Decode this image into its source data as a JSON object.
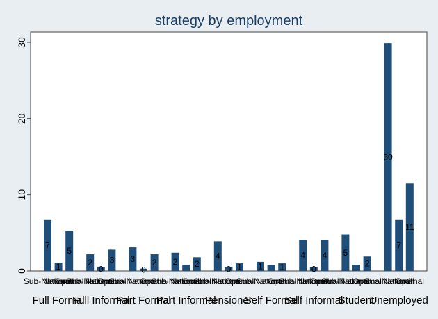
{
  "chart_data": {
    "type": "bar",
    "title": "strategy by employment",
    "xlabel": "",
    "ylabel": "",
    "ylim": [
      0,
      31.5
    ],
    "yticks": [
      0,
      10,
      20,
      30
    ],
    "grid": false,
    "legend": "none",
    "bar_color": "#1f4e79",
    "groups": [
      {
        "name": "Full Formal",
        "bars": [
          {
            "label": "Sub-National",
            "value": 6.7,
            "data_label": "7"
          },
          {
            "label": "National",
            "value": 1.1,
            "data_label": "1"
          },
          {
            "label": "Optimal",
            "value": 5.3,
            "data_label": "5"
          }
        ]
      },
      {
        "name": "Full Informal",
        "bars": [
          {
            "label": "Sub-National",
            "value": 2.2,
            "data_label": "2"
          },
          {
            "label": "National",
            "value": 0.5,
            "data_label": "0"
          },
          {
            "label": "Optimal",
            "value": 2.8,
            "data_label": "3"
          }
        ]
      },
      {
        "name": "Part Formal",
        "bars": [
          {
            "label": "Sub-National",
            "value": 3.1,
            "data_label": "3"
          },
          {
            "label": "National",
            "value": 0.3,
            "data_label": "0"
          },
          {
            "label": "Optimal",
            "value": 2.2,
            "data_label": "2"
          }
        ]
      },
      {
        "name": "Part Informal",
        "bars": [
          {
            "label": "Sub-National",
            "value": 2.4,
            "data_label": "2"
          },
          {
            "label": "National",
            "value": 0.8,
            "data_label": ""
          },
          {
            "label": "Optimal",
            "value": 1.8,
            "data_label": "2"
          }
        ]
      },
      {
        "name": "Pensioner",
        "bars": [
          {
            "label": "Sub-National",
            "value": 3.9,
            "data_label": "4"
          },
          {
            "label": "National",
            "value": 0.5,
            "data_label": "0"
          },
          {
            "label": "Optimal",
            "value": 1.0,
            "data_label": "1"
          }
        ]
      },
      {
        "name": "Self Formal",
        "bars": [
          {
            "label": "Sub-National",
            "value": 1.2,
            "data_label": "1"
          },
          {
            "label": "National",
            "value": 0.8,
            "data_label": ""
          },
          {
            "label": "Optimal",
            "value": 1.0,
            "data_label": "1"
          }
        ]
      },
      {
        "name": "Self Informal",
        "bars": [
          {
            "label": "Sub-National",
            "value": 4.1,
            "data_label": "4"
          },
          {
            "label": "National",
            "value": 0.5,
            "data_label": "0"
          },
          {
            "label": "Optimal",
            "value": 4.1,
            "data_label": "4"
          }
        ]
      },
      {
        "name": "Student",
        "bars": [
          {
            "label": "Sub-National",
            "value": 4.8,
            "data_label": "5"
          },
          {
            "label": "National",
            "value": 0.8,
            "data_label": ""
          },
          {
            "label": "Optimal",
            "value": 1.9,
            "data_label": "2"
          }
        ]
      },
      {
        "name": "Unemployed",
        "bars": [
          {
            "label": "Sub-National",
            "value": 29.9,
            "data_label": "30"
          },
          {
            "label": "National",
            "value": 6.7,
            "data_label": "7"
          },
          {
            "label": "Optimal",
            "value": 11.5,
            "data_label": "11"
          }
        ]
      }
    ]
  }
}
